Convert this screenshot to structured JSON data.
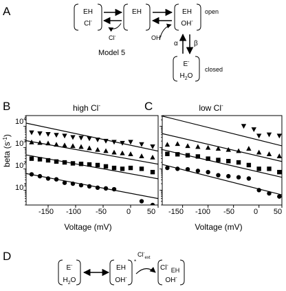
{
  "panel_a": {
    "letter": "A",
    "model_label": "Model 5",
    "state1": {
      "top": "EH",
      "bottom": "Cl",
      "bottom_sup": "-"
    },
    "state2": {
      "top": "EH",
      "bottom": ""
    },
    "state3": {
      "top": "EH",
      "bottom": "OH",
      "bottom_sup": "-"
    },
    "state4": {
      "top": "E",
      "top_sup": "-",
      "bottom": "H",
      "bottom_sub": "2",
      "bottom_tail": "O"
    },
    "ion_cl": "Cl",
    "ion_cl_sup": "-",
    "ion_oh": "OH",
    "ion_oh_sup": "-",
    "rate_alpha": "α",
    "rate_beta": "β",
    "label_open": "open",
    "label_closed": "closed"
  },
  "panel_b": {
    "letter": "B",
    "title": "high Cl",
    "title_sup": "-"
  },
  "panel_c": {
    "letter": "C",
    "title": "low Cl",
    "title_sup": "-"
  },
  "axes": {
    "ylabel": "beta (s",
    "ylabel_sup": "-1",
    "ylabel_tail": ")",
    "xlabel": "Voltage (mV)",
    "xlabel_c": "Voltage (mV)",
    "xticks": [
      "-150",
      "-100",
      "-50",
      "0",
      "50"
    ],
    "xticks_c": [
      "-150",
      "-100",
      "-50",
      "0",
      "50"
    ],
    "yticks_base": [
      "10",
      "10",
      "10",
      "10"
    ],
    "yticks_exp": [
      "1",
      "2",
      "3",
      "4"
    ]
  },
  "chart_data": [
    {
      "type": "scatter",
      "panel": "B",
      "xlim": [
        -190,
        50
      ],
      "ylim_log10": [
        0.3,
        4.5
      ],
      "yscale": "log",
      "series": [
        {
          "marker": "triangle-down",
          "x": [
            -180,
            -165,
            -150,
            -135,
            -120,
            -105,
            -90,
            -75,
            -60,
            -45,
            -30,
            -15,
            0,
            20,
            40
          ],
          "y": [
            5000,
            4500,
            4200,
            3800,
            3500,
            3000,
            2800,
            2600,
            2300,
            2000,
            1800,
            1600,
            1800,
            1400,
            1100
          ]
        },
        {
          "marker": "triangle-up",
          "x": [
            -180,
            -165,
            -150,
            -135,
            -120,
            -105,
            -90,
            -75,
            -60,
            -45,
            -30,
            -15,
            0,
            20,
            40
          ],
          "y": [
            1800,
            1700,
            1600,
            1400,
            1300,
            1200,
            1100,
            950,
            800,
            700,
            600,
            550,
            500,
            400,
            350
          ]
        },
        {
          "marker": "square",
          "x": [
            -180,
            -165,
            -150,
            -135,
            -120,
            -105,
            -90,
            -75,
            -60,
            -45,
            -30,
            -15,
            0,
            20,
            40
          ],
          "y": [
            300,
            280,
            250,
            220,
            200,
            180,
            170,
            160,
            150,
            130,
            110,
            100,
            110,
            100,
            70
          ]
        },
        {
          "marker": "circle",
          "x": [
            -180,
            -165,
            -150,
            -135,
            -120,
            -105,
            -90,
            -75,
            -60,
            -45,
            -30,
            20,
            40
          ],
          "y": [
            55,
            45,
            35,
            32,
            22,
            20,
            17,
            15,
            13,
            12,
            11,
            3,
            2
          ]
        }
      ],
      "fits": [
        {
          "y_at_xmin": 14000,
          "y_at_xmax": 680
        },
        {
          "y_at_xmin": 2100,
          "y_at_xmax": 165
        },
        {
          "y_at_xmin": 450,
          "y_at_xmax": 34
        },
        {
          "y_at_xmin": 60,
          "y_at_xmax": 4
        }
      ]
    },
    {
      "type": "scatter",
      "panel": "C",
      "xlim": [
        -190,
        45
      ],
      "ylim_log10": [
        0.3,
        4.5
      ],
      "yscale": "log",
      "series": [
        {
          "marker": "triangle-down",
          "x": [
            -30,
            -10,
            0,
            20,
            40
          ],
          "y": [
            10000,
            7000,
            3500,
            4000,
            3500
          ]
        },
        {
          "marker": "triangle-up",
          "x": [
            -180,
            -160,
            -140,
            -120,
            -100,
            -80,
            -60,
            -40,
            -20,
            0,
            20,
            40
          ],
          "y": [
            1400,
            1500,
            1200,
            1100,
            1000,
            900,
            800,
            700,
            900,
            600,
            500,
            400
          ]
        },
        {
          "marker": "square",
          "x": [
            -180,
            -160,
            -140,
            -120,
            -100,
            -80,
            -60,
            -40,
            -20,
            0,
            20,
            40
          ],
          "y": [
            500,
            480,
            430,
            380,
            300,
            260,
            230,
            200,
            150,
            100,
            100,
            70
          ]
        },
        {
          "marker": "circle",
          "x": [
            -180,
            -160,
            -140,
            -120,
            -100,
            -80,
            -60,
            -40,
            -20,
            0,
            20,
            40
          ],
          "y": [
            110,
            100,
            95,
            80,
            70,
            50,
            45,
            40,
            35,
            10,
            7,
            5
          ]
        }
      ],
      "fits": [
        {
          "y_at_xmin": 30000,
          "y_at_xmax": 1200
        },
        {
          "y_at_xmin": 4500,
          "y_at_xmax": 220
        },
        {
          "y_at_xmin": 800,
          "y_at_xmax": 40
        },
        {
          "y_at_xmin": 160,
          "y_at_xmax": 6
        }
      ]
    }
  ],
  "panel_d": {
    "letter": "D",
    "state1": {
      "top": "E",
      "top_sup": "-",
      "bottom": "H",
      "bottom_sub": "2",
      "bottom_tail": "O"
    },
    "state2": {
      "top": "EH",
      "bottom": "OH",
      "bottom_sup": "-",
      "star": "*"
    },
    "state3": {
      "left": "Cl",
      "left_sup": "-",
      "top": "EH",
      "bottom": "OH",
      "bottom_sup": "-"
    },
    "ion": "Cl",
    "ion_sup": "-",
    "ion_sub": "ext"
  }
}
